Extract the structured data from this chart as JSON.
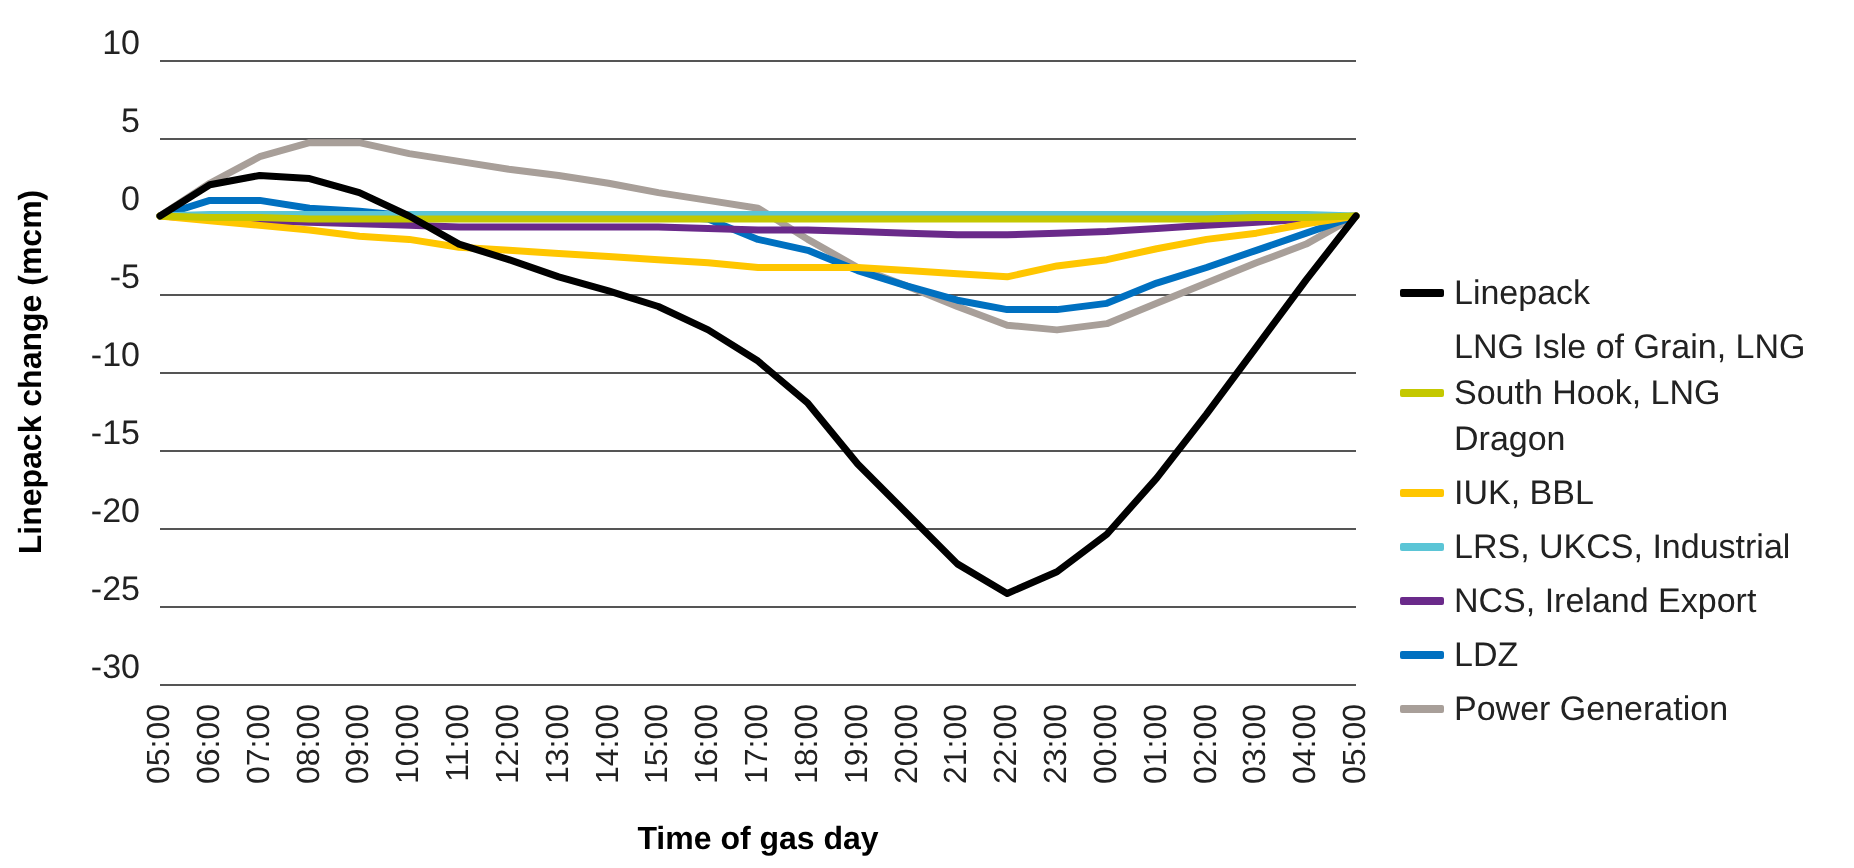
{
  "chart_data": {
    "type": "line",
    "xlabel": "Time of gas day",
    "ylabel": "Linepack change (mcm)",
    "categories": [
      "05:00",
      "06:00",
      "07:00",
      "08:00",
      "09:00",
      "10:00",
      "11:00",
      "12:00",
      "13:00",
      "14:00",
      "15:00",
      "16:00",
      "17:00",
      "18:00",
      "19:00",
      "20:00",
      "21:00",
      "22:00",
      "23:00",
      "00:00",
      "01:00",
      "02:00",
      "03:00",
      "04:00",
      "05:00"
    ],
    "ylim": [
      -30,
      10
    ],
    "yticks": [
      -30,
      -25,
      -20,
      -15,
      -10,
      -5,
      0,
      5,
      10
    ],
    "grid": "y",
    "legend": "right",
    "marker": "none",
    "line_style": "solid",
    "series": [
      {
        "name": "Linepack",
        "color": "#000000",
        "values": [
          0,
          2,
          2.6,
          2.4,
          1.5,
          0,
          -1.8,
          -2.8,
          -3.9,
          -4.8,
          -5.8,
          -7.3,
          -9.3,
          -12,
          -15.9,
          -19.1,
          -22.3,
          -24.2,
          -22.8,
          -20.4,
          -16.8,
          -12.7,
          -8.4,
          -4.1,
          0
        ]
      },
      {
        "name": "LNG Isle of Grain, LNG South Hook, LNG Dragon",
        "color": "#c4c800",
        "values": [
          0,
          -0.1,
          -0.1,
          -0.2,
          -0.2,
          -0.2,
          -0.2,
          -0.2,
          -0.2,
          -0.2,
          -0.2,
          -0.2,
          -0.2,
          -0.2,
          -0.2,
          -0.2,
          -0.2,
          -0.2,
          -0.2,
          -0.2,
          -0.2,
          -0.2,
          -0.1,
          -0.1,
          0
        ]
      },
      {
        "name": "IUK, BBL",
        "color": "#ffc600",
        "values": [
          0,
          -0.3,
          -0.6,
          -0.9,
          -1.3,
          -1.5,
          -2,
          -2.2,
          -2.4,
          -2.6,
          -2.8,
          -3,
          -3.3,
          -3.3,
          -3.3,
          -3.5,
          -3.7,
          -3.9,
          -3.2,
          -2.8,
          -2.1,
          -1.5,
          -1.1,
          -0.5,
          0
        ]
      },
      {
        "name": "LRS, UKCS, Industrial",
        "color": "#5bc5d6",
        "values": [
          0,
          0.1,
          0.1,
          0.1,
          0.1,
          0.1,
          0.1,
          0.1,
          0.1,
          0.1,
          0.1,
          0.1,
          0.1,
          0.1,
          0.1,
          0.1,
          0.1,
          0.1,
          0.1,
          0.1,
          0.1,
          0.1,
          0.1,
          0.1,
          0
        ]
      },
      {
        "name": "NCS, Ireland Export",
        "color": "#6a2a8a",
        "values": [
          0,
          -0.2,
          -0.3,
          -0.4,
          -0.5,
          -0.6,
          -0.7,
          -0.7,
          -0.7,
          -0.7,
          -0.7,
          -0.8,
          -0.9,
          -0.9,
          -1,
          -1.1,
          -1.2,
          -1.2,
          -1.1,
          -1,
          -0.8,
          -0.6,
          -0.4,
          -0.2,
          0
        ]
      },
      {
        "name": "LDZ",
        "color": "#0070c0",
        "values": [
          0,
          1,
          1,
          0.5,
          0.3,
          0,
          0,
          0,
          0,
          0,
          0,
          -0.2,
          -1.5,
          -2.2,
          -3.5,
          -4.5,
          -5.4,
          -6,
          -6,
          -5.6,
          -4.3,
          -3.3,
          -2.2,
          -1.1,
          0
        ]
      },
      {
        "name": "Power Generation",
        "color": "#a89f99",
        "values": [
          0,
          2.1,
          3.8,
          4.7,
          4.7,
          4,
          3.5,
          3,
          2.6,
          2.1,
          1.5,
          1,
          0.5,
          -1.5,
          -3.3,
          -4.5,
          -5.8,
          -7,
          -7.3,
          -6.9,
          -5.6,
          -4.3,
          -3,
          -1.8,
          0
        ]
      }
    ]
  }
}
